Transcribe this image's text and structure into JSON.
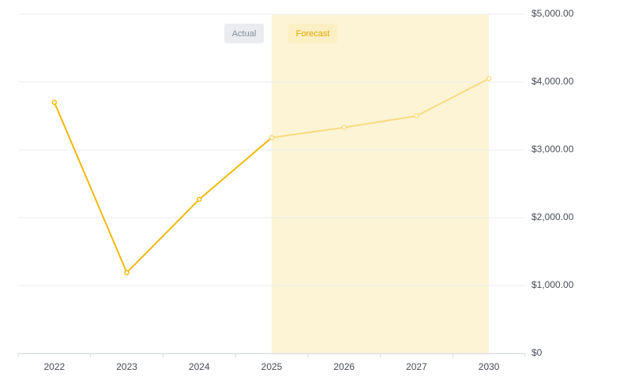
{
  "chart_data": {
    "type": "line",
    "categories": [
      "2022",
      "2023",
      "2024",
      "2025",
      "2026",
      "2027",
      "2030"
    ],
    "series": [
      {
        "name": "Actual",
        "color": "#f0b90b",
        "values": [
          3700,
          1190,
          2270,
          3180,
          null,
          null,
          null
        ]
      },
      {
        "name": "Forecast",
        "color": "#f7dc82",
        "values": [
          null,
          null,
          null,
          3180,
          3330,
          3500,
          4050
        ]
      }
    ],
    "ylim": [
      0,
      5000
    ],
    "yticks": [
      {
        "value": 0,
        "label": "$0"
      },
      {
        "value": 1000,
        "label": "$1,000.00"
      },
      {
        "value": 2000,
        "label": "$2,000.00"
      },
      {
        "value": 3000,
        "label": "$3,000.00"
      },
      {
        "value": 4000,
        "label": "$4,000.00"
      },
      {
        "value": 5000,
        "label": "$5,000.00"
      }
    ],
    "grid": true
  }
}
